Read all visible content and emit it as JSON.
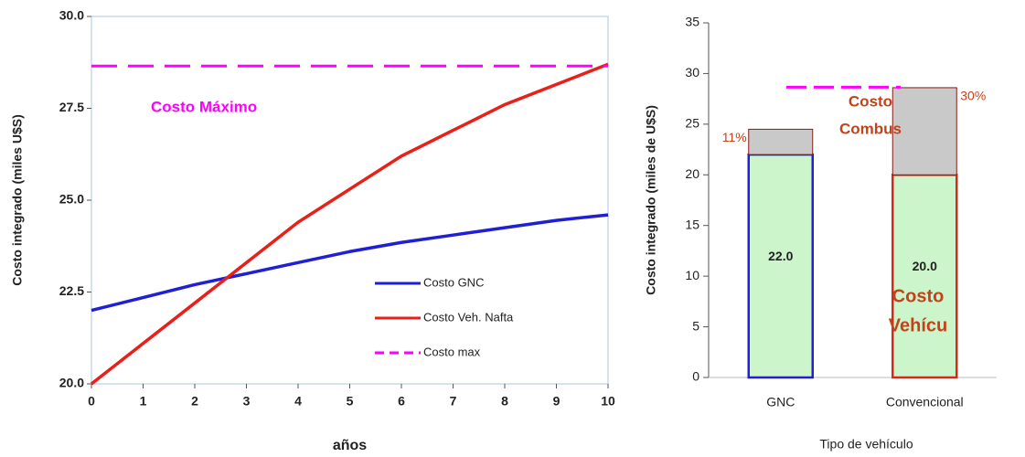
{
  "chart_data": [
    {
      "type": "line",
      "x_label": "años",
      "y_label": "Costo integrado (miles U$S)",
      "x": [
        0,
        1,
        2,
        3,
        4,
        5,
        6,
        7,
        8,
        9,
        10
      ],
      "xlim": [
        0,
        10
      ],
      "xticks": [
        0,
        1,
        2,
        3,
        4,
        5,
        6,
        7,
        8,
        9,
        10
      ],
      "ylim": [
        20,
        30
      ],
      "yticks": [
        {
          "value": 20,
          "label": "20.0"
        },
        {
          "value": 22.5,
          "label": "22.5"
        },
        {
          "value": 25,
          "label": "25.0"
        },
        {
          "value": 27.5,
          "label": "27.5"
        },
        {
          "value": 30,
          "label": "30.0"
        }
      ],
      "series": [
        {
          "name": "Costo GNC",
          "color": "#1f1fd6",
          "values": [
            22.0,
            22.35,
            22.7,
            23.0,
            23.3,
            23.6,
            23.85,
            24.05,
            24.25,
            24.45,
            24.6
          ]
        },
        {
          "name": "Costo Veh. Nafta",
          "color": "#e8201a",
          "values": [
            20.0,
            21.1,
            22.2,
            23.3,
            24.4,
            25.3,
            26.2,
            26.9,
            27.6,
            28.15,
            28.7
          ]
        },
        {
          "name": "Costo max",
          "color": "#ff00ff",
          "dashed": true,
          "values": [
            28.65,
            28.65,
            28.65,
            28.65,
            28.65,
            28.65,
            28.65,
            28.65,
            28.65,
            28.65,
            28.65
          ]
        }
      ],
      "annotations": [
        {
          "text": "Costo Máximo",
          "color": "#ff00ff"
        }
      ]
    },
    {
      "type": "bar",
      "x_label": "Tipo de vehículo",
      "y_label": "Costo integrado (miles de U$S)",
      "categories": [
        "GNC",
        "Convencional"
      ],
      "values": [
        22.0,
        20.0
      ],
      "value_labels": [
        "22.0",
        "20.0"
      ],
      "fill": "#ccf5cc",
      "edge_colors": [
        "#1f1fd6",
        "#d42a1a"
      ],
      "top_values": [
        2.5,
        8.6
      ],
      "top_labels": [
        "11%",
        "30%"
      ],
      "ref_value": 28.65,
      "ref_color": "#ff00ff",
      "ylim": [
        0,
        35
      ],
      "yticks": [
        0,
        5,
        10,
        15,
        20,
        25,
        30,
        35
      ],
      "annotations": [
        {
          "text": "Costo",
          "color": "#c4421a"
        },
        {
          "text": "Combus",
          "color": "#c4421a"
        },
        {
          "text": "Costo",
          "color": "#c4421a"
        },
        {
          "text": "Vehícu",
          "color": "#c4421a"
        }
      ]
    }
  ]
}
